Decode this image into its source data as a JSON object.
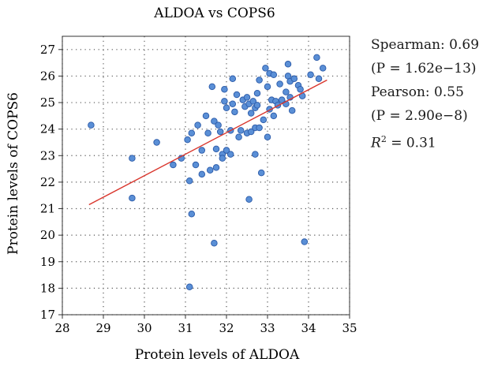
{
  "chart_data": {
    "type": "scatter",
    "title": "ALDOA vs COPS6",
    "xlabel": "Protein levels of ALDOA",
    "ylabel": "Protein levels of COPS6",
    "xlim": [
      28,
      35
    ],
    "ylim": [
      17,
      27.5
    ],
    "xticks": [
      28,
      29,
      30,
      31,
      32,
      33,
      34,
      35
    ],
    "yticks": [
      17,
      18,
      19,
      20,
      21,
      22,
      23,
      24,
      25,
      26,
      27
    ],
    "grid": true,
    "points": [
      {
        "x": 28.7,
        "y": 24.15
      },
      {
        "x": 29.7,
        "y": 22.9
      },
      {
        "x": 29.7,
        "y": 21.4
      },
      {
        "x": 30.3,
        "y": 23.5
      },
      {
        "x": 30.7,
        "y": 22.65
      },
      {
        "x": 30.9,
        "y": 22.9
      },
      {
        "x": 31.05,
        "y": 23.6
      },
      {
        "x": 31.1,
        "y": 22.05
      },
      {
        "x": 31.1,
        "y": 18.05
      },
      {
        "x": 31.15,
        "y": 20.8
      },
      {
        "x": 31.15,
        "y": 23.85
      },
      {
        "x": 31.25,
        "y": 22.65
      },
      {
        "x": 31.3,
        "y": 24.15
      },
      {
        "x": 31.4,
        "y": 23.2
      },
      {
        "x": 31.4,
        "y": 22.3
      },
      {
        "x": 31.5,
        "y": 24.5
      },
      {
        "x": 31.55,
        "y": 23.85
      },
      {
        "x": 31.6,
        "y": 22.45
      },
      {
        "x": 31.65,
        "y": 25.6
      },
      {
        "x": 31.7,
        "y": 24.3
      },
      {
        "x": 31.7,
        "y": 19.7
      },
      {
        "x": 31.75,
        "y": 23.25
      },
      {
        "x": 31.75,
        "y": 22.55
      },
      {
        "x": 31.8,
        "y": 24.15
      },
      {
        "x": 31.85,
        "y": 23.9
      },
      {
        "x": 31.9,
        "y": 23.05
      },
      {
        "x": 31.9,
        "y": 22.9
      },
      {
        "x": 31.95,
        "y": 25.5
      },
      {
        "x": 31.95,
        "y": 25.05
      },
      {
        "x": 32.0,
        "y": 24.8
      },
      {
        "x": 32.0,
        "y": 23.2
      },
      {
        "x": 32.1,
        "y": 23.95
      },
      {
        "x": 32.1,
        "y": 23.05
      },
      {
        "x": 32.15,
        "y": 25.9
      },
      {
        "x": 32.15,
        "y": 24.95
      },
      {
        "x": 32.2,
        "y": 24.65
      },
      {
        "x": 32.25,
        "y": 25.3
      },
      {
        "x": 32.3,
        "y": 23.7
      },
      {
        "x": 32.35,
        "y": 23.95
      },
      {
        "x": 32.4,
        "y": 25.1
      },
      {
        "x": 32.45,
        "y": 24.85
      },
      {
        "x": 32.5,
        "y": 25.2
      },
      {
        "x": 32.5,
        "y": 23.85
      },
      {
        "x": 32.55,
        "y": 24.95
      },
      {
        "x": 32.55,
        "y": 21.35
      },
      {
        "x": 32.6,
        "y": 24.6
      },
      {
        "x": 32.6,
        "y": 23.9
      },
      {
        "x": 32.65,
        "y": 25.05
      },
      {
        "x": 32.7,
        "y": 24.8
      },
      {
        "x": 32.7,
        "y": 24.05
      },
      {
        "x": 32.7,
        "y": 23.05
      },
      {
        "x": 32.75,
        "y": 25.35
      },
      {
        "x": 32.75,
        "y": 24.9
      },
      {
        "x": 32.8,
        "y": 25.85
      },
      {
        "x": 32.8,
        "y": 24.05
      },
      {
        "x": 32.85,
        "y": 22.35
      },
      {
        "x": 32.9,
        "y": 24.35
      },
      {
        "x": 32.95,
        "y": 26.3
      },
      {
        "x": 33.0,
        "y": 23.7
      },
      {
        "x": 33.0,
        "y": 25.6
      },
      {
        "x": 33.05,
        "y": 24.75
      },
      {
        "x": 33.05,
        "y": 26.1
      },
      {
        "x": 33.1,
        "y": 25.1
      },
      {
        "x": 33.15,
        "y": 24.5
      },
      {
        "x": 33.15,
        "y": 26.05
      },
      {
        "x": 33.2,
        "y": 25.05
      },
      {
        "x": 33.25,
        "y": 24.9
      },
      {
        "x": 33.3,
        "y": 25.7
      },
      {
        "x": 33.35,
        "y": 25.1
      },
      {
        "x": 33.45,
        "y": 24.95
      },
      {
        "x": 33.45,
        "y": 25.4
      },
      {
        "x": 33.5,
        "y": 26.45
      },
      {
        "x": 33.5,
        "y": 26.0
      },
      {
        "x": 33.55,
        "y": 25.8
      },
      {
        "x": 33.55,
        "y": 25.2
      },
      {
        "x": 33.6,
        "y": 24.7
      },
      {
        "x": 33.65,
        "y": 25.9
      },
      {
        "x": 33.75,
        "y": 25.65
      },
      {
        "x": 33.8,
        "y": 25.5
      },
      {
        "x": 33.85,
        "y": 25.25
      },
      {
        "x": 33.9,
        "y": 19.75
      },
      {
        "x": 34.05,
        "y": 26.05
      },
      {
        "x": 34.2,
        "y": 26.7
      },
      {
        "x": 34.25,
        "y": 25.9
      },
      {
        "x": 34.35,
        "y": 26.3
      }
    ],
    "fit_line": {
      "x": [
        28.65,
        34.45
      ],
      "y": [
        21.15,
        25.85
      ],
      "color": "#d9352c"
    },
    "marker_color": "#5a8fd6",
    "marker_edge_color": "#2b5aa8"
  },
  "stats": {
    "spearman": "Spearman: 0.69",
    "spearman_p": "(P = 1.62e−13)",
    "pearson": "Pearson: 0.55",
    "pearson_p": "(P = 2.90e−8)",
    "r2_symbol": "R",
    "r2_exp": "2",
    "r2_value": " = 0.31"
  }
}
